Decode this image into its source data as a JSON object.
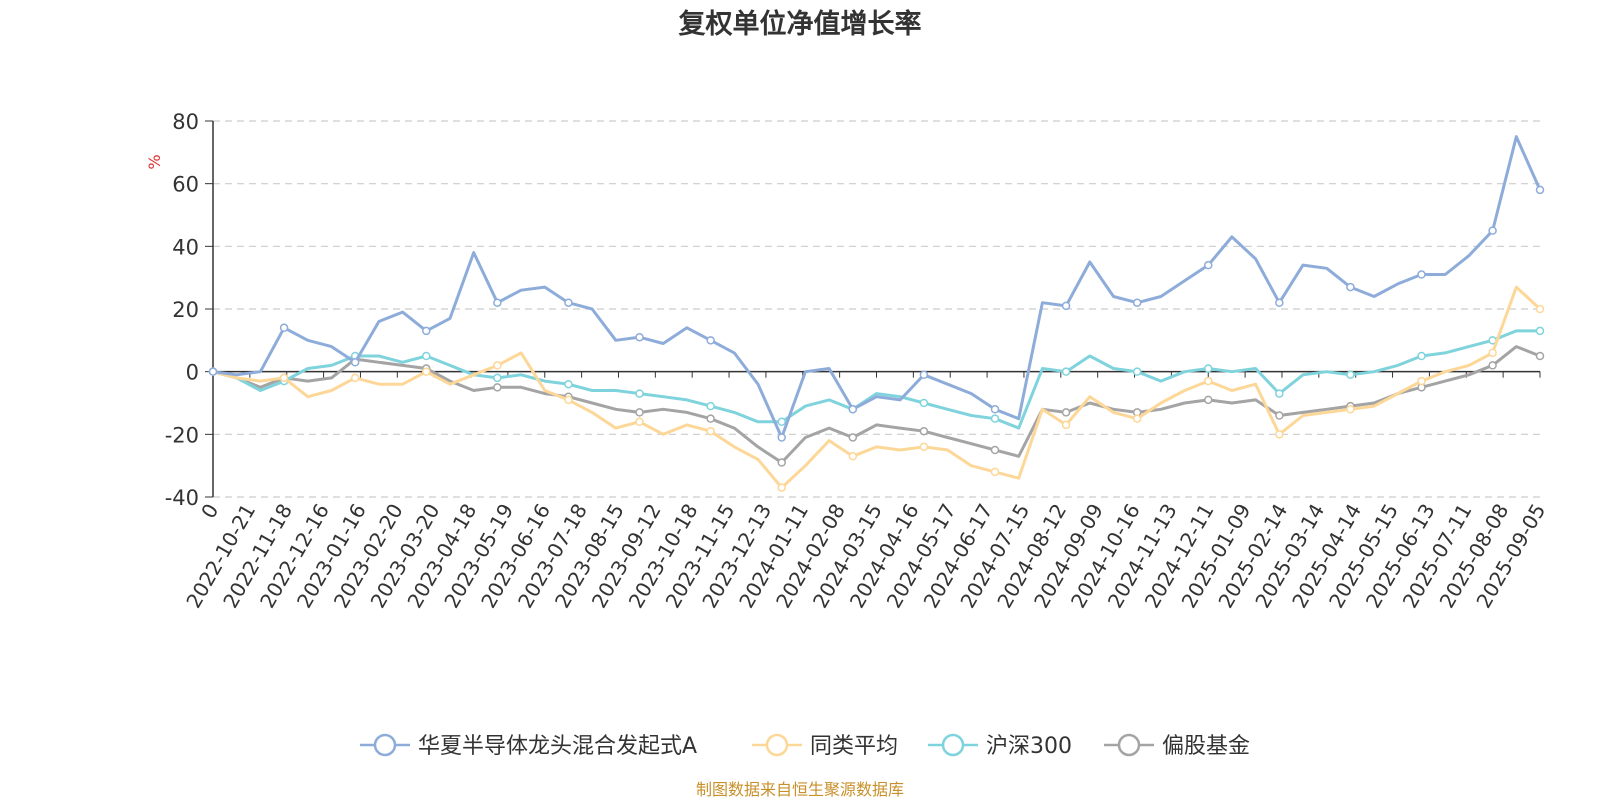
{
  "chart_data": {
    "type": "line",
    "title": "复权单位净值增长率",
    "ylabel": "%",
    "ylim": [
      -40,
      80
    ],
    "yticks": [
      -40,
      -20,
      0,
      20,
      40,
      60,
      80
    ],
    "grid": true,
    "legend_position": "bottom",
    "x_tick_labels": [
      "0",
      "2022-10-21",
      "2022-11-18",
      "2022-12-16",
      "2023-01-16",
      "2023-02-20",
      "2023-03-20",
      "2023-04-18",
      "2023-05-19",
      "2023-06-16",
      "2023-07-18",
      "2023-08-15",
      "2023-09-12",
      "2023-10-18",
      "2023-11-15",
      "2023-12-13",
      "2024-01-11",
      "2024-02-08",
      "2024-03-15",
      "2024-04-16",
      "2024-05-17",
      "2024-06-17",
      "2024-07-15",
      "2024-08-12",
      "2024-09-09",
      "2024-10-16",
      "2024-11-13",
      "2024-12-11",
      "2025-01-09",
      "2025-02-14",
      "2025-03-14",
      "2025-04-14",
      "2025-05-15",
      "2025-06-13",
      "2025-07-11",
      "2025-08-08",
      "2025-09-05"
    ],
    "series": [
      {
        "name": "华夏半导体龙头混合发起式A",
        "color": "#8eacda",
        "values": [
          0,
          -1,
          0,
          14,
          10,
          8,
          3,
          16,
          19,
          13,
          17,
          38,
          22,
          26,
          27,
          22,
          20,
          10,
          11,
          9,
          14,
          10,
          6,
          -4,
          -21,
          0,
          1,
          -12,
          -8,
          -9,
          -1,
          -4,
          -7,
          -12,
          -15,
          22,
          21,
          35,
          24,
          22,
          24,
          29,
          34,
          43,
          36,
          22,
          34,
          33,
          27,
          24,
          28,
          31,
          31,
          37,
          45,
          75,
          58
        ]
      },
      {
        "name": "同类平均",
        "color": "#fdd797",
        "values": [
          0,
          -2,
          -3,
          -2,
          -8,
          -6,
          -2,
          -4,
          -4,
          0,
          -4,
          -1,
          2,
          6,
          -6,
          -9,
          -13,
          -18,
          -16,
          -20,
          -17,
          -19,
          -24,
          -28,
          -37,
          -30,
          -22,
          -27,
          -24,
          -25,
          -24,
          -25,
          -30,
          -32,
          -34,
          -12,
          -17,
          -8,
          -13,
          -15,
          -10,
          -6,
          -3,
          -6,
          -4,
          -20,
          -14,
          -13,
          -12,
          -11,
          -7,
          -3,
          0,
          2,
          6,
          27,
          20
        ]
      },
      {
        "name": "沪深300",
        "color": "#7fd3dc",
        "values": [
          0,
          -2,
          -6,
          -3,
          1,
          2,
          5,
          5,
          3,
          5,
          2,
          -1,
          -2,
          -1,
          -3,
          -4,
          -6,
          -6,
          -7,
          -8,
          -9,
          -11,
          -13,
          -16,
          -16,
          -11,
          -9,
          -12,
          -7,
          -8,
          -10,
          -12,
          -14,
          -15,
          -18,
          1,
          0,
          5,
          1,
          0,
          -3,
          0,
          1,
          0,
          1,
          -7,
          -1,
          0,
          -1,
          0,
          2,
          5,
          6,
          8,
          10,
          13,
          13
        ]
      },
      {
        "name": "偏股基金",
        "color": "#a4a4a4",
        "values": [
          0,
          -2,
          -5,
          -2,
          -3,
          -2,
          4,
          3,
          2,
          1,
          -3,
          -6,
          -5,
          -5,
          -7,
          -8,
          -10,
          -12,
          -13,
          -12,
          -13,
          -15,
          -18,
          -24,
          -29,
          -21,
          -18,
          -21,
          -17,
          -18,
          -19,
          -21,
          -23,
          -25,
          -27,
          -12,
          -13,
          -10,
          -12,
          -13,
          -12,
          -10,
          -9,
          -10,
          -9,
          -14,
          -13,
          -12,
          -11,
          -10,
          -7,
          -5,
          -3,
          -1,
          2,
          8,
          5
        ]
      }
    ]
  },
  "source_text": "制图数据来自恒生聚源数据库"
}
